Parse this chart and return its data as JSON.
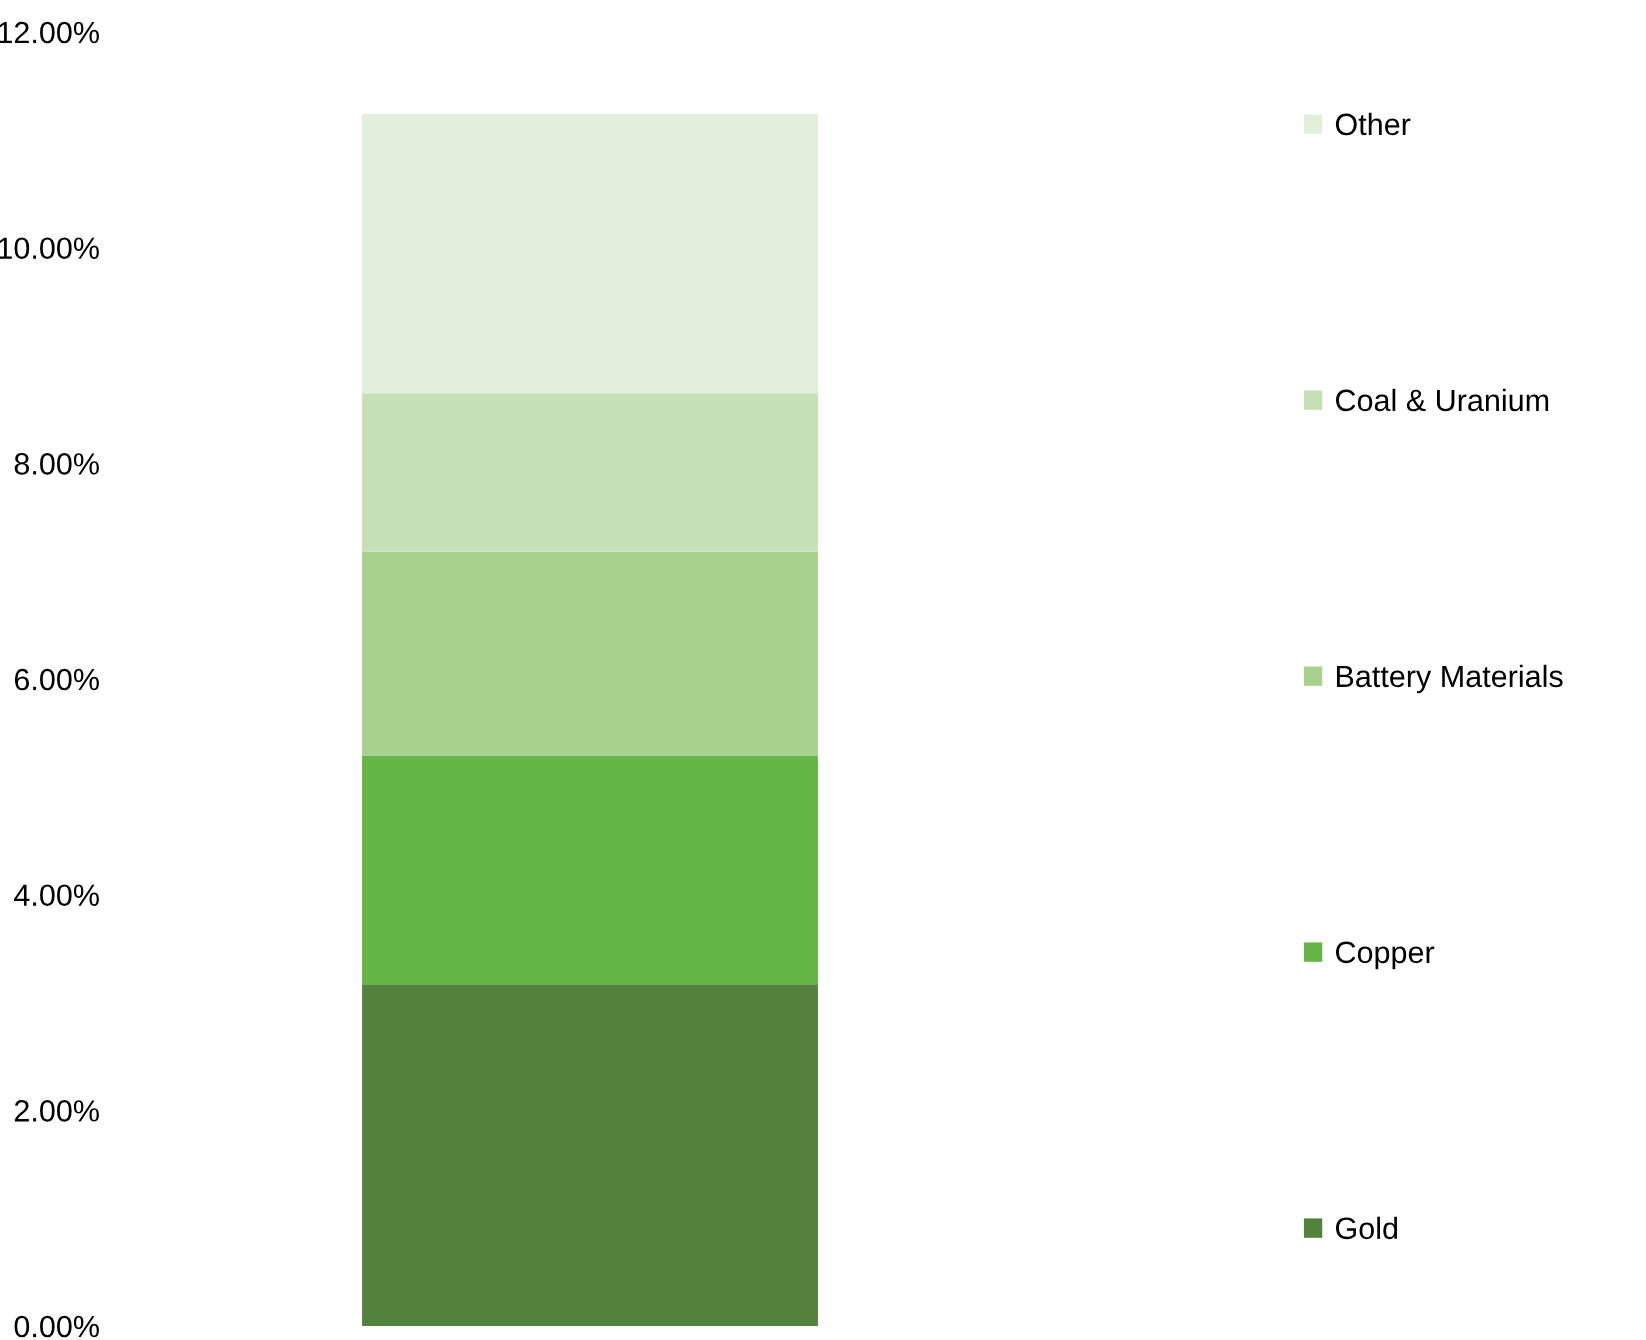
{
  "chart_data": {
    "type": "bar",
    "stacked": true,
    "categories": [
      null
    ],
    "series": [
      {
        "name": "Gold",
        "color": "#52823b",
        "values": [
          3.17
        ]
      },
      {
        "name": "Copper",
        "color": "#65b446",
        "values": [
          2.12
        ]
      },
      {
        "name": "Battery Materials",
        "color": "#a9d18e",
        "values": [
          1.89
        ]
      },
      {
        "name": "Coal & Uranium",
        "color": "#c5e0b4",
        "values": [
          1.47
        ]
      },
      {
        "name": "Other",
        "color": "#e2efda",
        "values": [
          2.59
        ]
      }
    ],
    "ylim": [
      0,
      12
    ],
    "yticks": [
      {
        "value": 0,
        "label": "0.00%"
      },
      {
        "value": 2,
        "label": "2.00%"
      },
      {
        "value": 4,
        "label": "4.00%"
      },
      {
        "value": 6,
        "label": "6.00%"
      },
      {
        "value": 8,
        "label": "8.00%"
      },
      {
        "value": 10,
        "label": "10.00%"
      },
      {
        "value": 12,
        "label": "12.00%"
      }
    ],
    "grid": false,
    "legend": "right"
  }
}
